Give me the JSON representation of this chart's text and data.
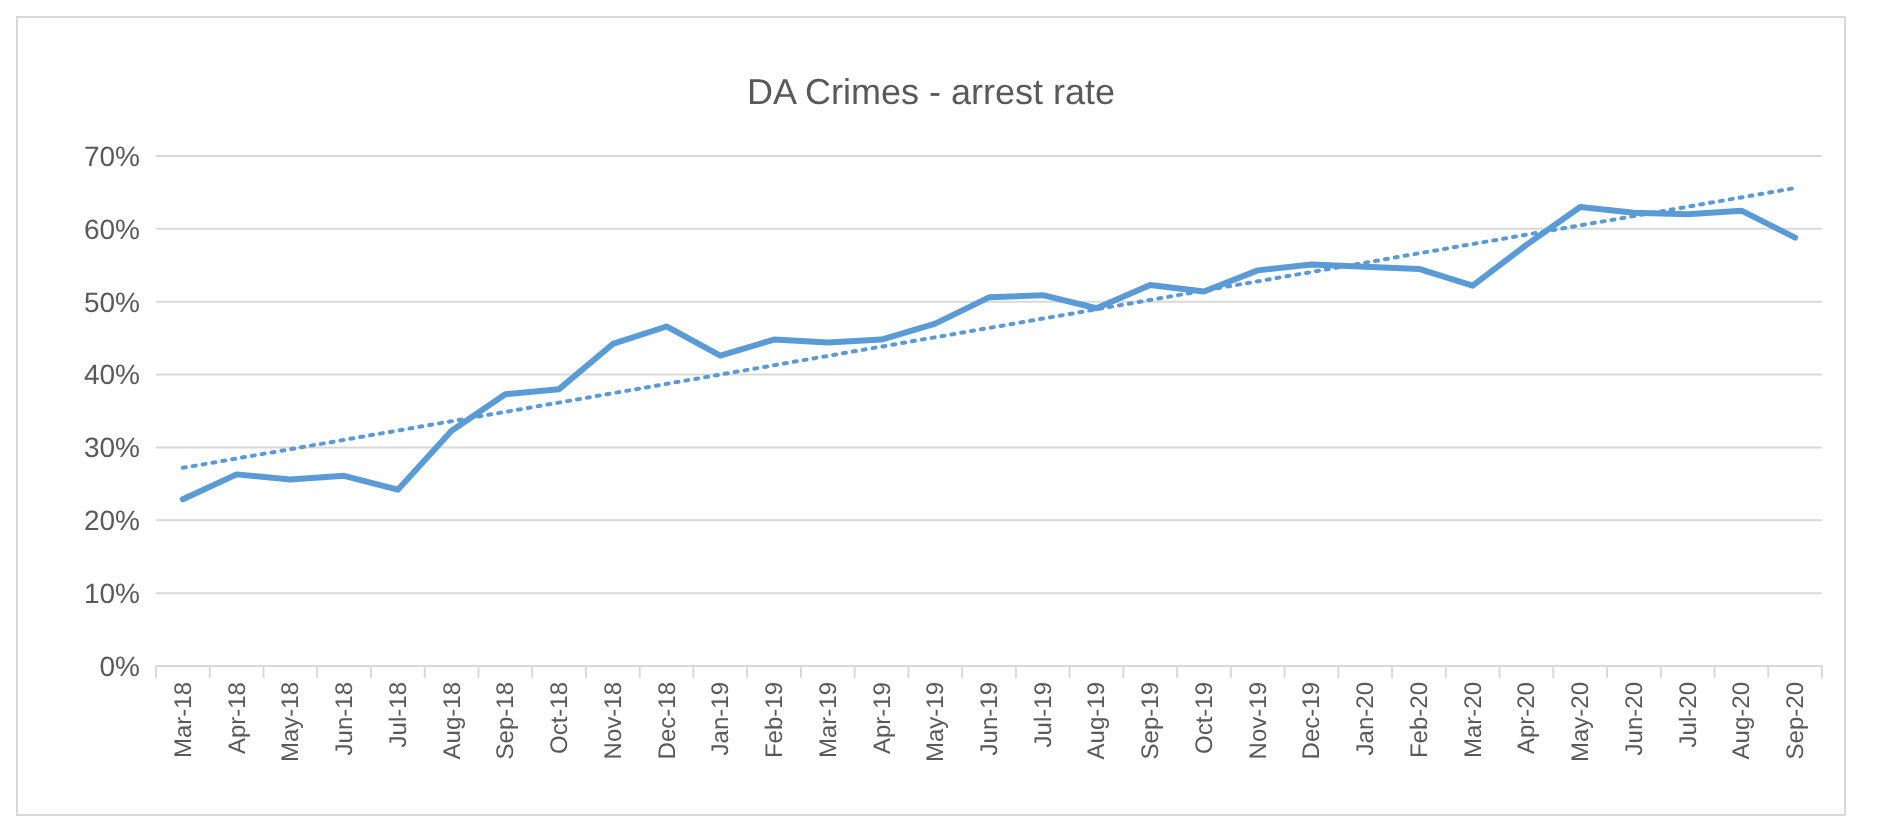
{
  "chart_data": {
    "type": "line",
    "title": "DA Crimes - arrest rate",
    "categories": [
      "Mar-18",
      "Apr-18",
      "May-18",
      "Jun-18",
      "Jul-18",
      "Aug-18",
      "Sep-18",
      "Oct-18",
      "Nov-18",
      "Dec-18",
      "Jan-19",
      "Feb-19",
      "Mar-19",
      "Apr-19",
      "May-19",
      "Jun-19",
      "Jul-19",
      "Aug-19",
      "Sep-19",
      "Oct-19",
      "Nov-19",
      "Dec-19",
      "Jan-20",
      "Feb-20",
      "Mar-20",
      "Apr-20",
      "May-20",
      "Jun-20",
      "Jul-20",
      "Aug-20",
      "Sep-20"
    ],
    "series": [
      {
        "color": "#5b9bd5",
        "values": [
          22.9,
          26.3,
          25.6,
          26.1,
          24.2,
          32.3,
          37.3,
          38.0,
          44.2,
          46.6,
          42.6,
          44.8,
          44.4,
          44.8,
          47.0,
          50.6,
          50.9,
          49.1,
          52.3,
          51.4,
          54.3,
          55.1,
          54.8,
          54.5,
          52.2,
          57.8,
          63.0,
          62.2,
          62.0,
          62.5,
          58.8
        ]
      },
      {
        "type": "line",
        "color": "#5b9bd5",
        "line_style": "dotted",
        "x": [
          "Mar-18",
          "Sep-20"
        ],
        "values": [
          27.2,
          65.6
        ]
      }
    ],
    "ylim": [
      0,
      70
    ],
    "yticks": [
      {
        "value": 0,
        "label": "0%"
      },
      {
        "value": 10,
        "label": "10%"
      },
      {
        "value": 20,
        "label": "20%"
      },
      {
        "value": 30,
        "label": "30%"
      },
      {
        "value": 40,
        "label": "40%"
      },
      {
        "value": 50,
        "label": "50%"
      },
      {
        "value": 60,
        "label": "60%"
      },
      {
        "value": 70,
        "label": "70%"
      }
    ],
    "grid": "y",
    "marker": "none",
    "line_style": "solid"
  }
}
